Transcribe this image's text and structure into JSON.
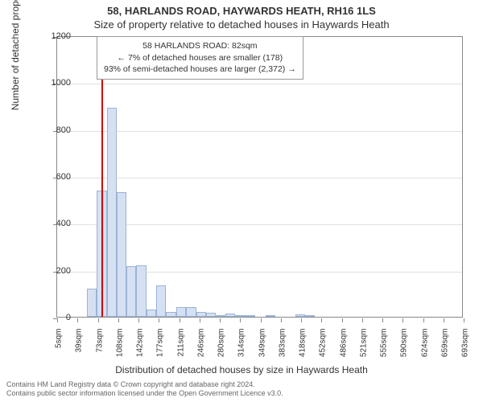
{
  "chart": {
    "type": "histogram",
    "title_main": "58, HARLANDS ROAD, HAYWARDS HEATH, RH16 1LS",
    "title_sub": "Size of property relative to detached houses in Haywards Heath",
    "ylabel": "Number of detached properties",
    "xlabel": "Distribution of detached houses by size in Haywards Heath",
    "title_fontsize": 13,
    "label_fontsize": 12,
    "tick_fontsize": 11,
    "annotation": {
      "line1": "58 HARLANDS ROAD: 82sqm",
      "line2": "← 7% of detached houses are smaller (178)",
      "line3": "93% of semi-detached houses are larger (2,372) →"
    },
    "ylim": [
      0,
      1200
    ],
    "ytick_step": 200,
    "yticks": [
      0,
      200,
      400,
      600,
      800,
      1000,
      1200
    ],
    "xticks": [
      "5sqm",
      "39sqm",
      "73sqm",
      "108sqm",
      "142sqm",
      "177sqm",
      "211sqm",
      "246sqm",
      "280sqm",
      "314sqm",
      "349sqm",
      "383sqm",
      "418sqm",
      "452sqm",
      "486sqm",
      "521sqm",
      "555sqm",
      "590sqm",
      "624sqm",
      "659sqm",
      "693sqm"
    ],
    "indicator_position_sqm": 82,
    "indicator_color": "#d40000",
    "bar_fill": "#d5e1f2",
    "bar_border": "#9bb3d6",
    "background_color": "#ffffff",
    "grid_color": "#e0e0e0",
    "axis_color": "#888888",
    "text_color": "#333333",
    "x_range_sqm": [
      5,
      710
    ],
    "bars": [
      {
        "start_sqm": 56,
        "end_sqm": 73,
        "value": 120
      },
      {
        "start_sqm": 73,
        "end_sqm": 91,
        "value": 540
      },
      {
        "start_sqm": 91,
        "end_sqm": 108,
        "value": 890
      },
      {
        "start_sqm": 108,
        "end_sqm": 125,
        "value": 530
      },
      {
        "start_sqm": 125,
        "end_sqm": 142,
        "value": 215
      },
      {
        "start_sqm": 142,
        "end_sqm": 160,
        "value": 220
      },
      {
        "start_sqm": 160,
        "end_sqm": 177,
        "value": 30
      },
      {
        "start_sqm": 177,
        "end_sqm": 194,
        "value": 135
      },
      {
        "start_sqm": 194,
        "end_sqm": 211,
        "value": 20
      },
      {
        "start_sqm": 211,
        "end_sqm": 228,
        "value": 40
      },
      {
        "start_sqm": 228,
        "end_sqm": 246,
        "value": 40
      },
      {
        "start_sqm": 246,
        "end_sqm": 263,
        "value": 20
      },
      {
        "start_sqm": 263,
        "end_sqm": 280,
        "value": 18
      },
      {
        "start_sqm": 280,
        "end_sqm": 297,
        "value": 8
      },
      {
        "start_sqm": 297,
        "end_sqm": 314,
        "value": 15
      },
      {
        "start_sqm": 314,
        "end_sqm": 332,
        "value": 5
      },
      {
        "start_sqm": 332,
        "end_sqm": 349,
        "value": 5
      },
      {
        "start_sqm": 366,
        "end_sqm": 383,
        "value": 5
      },
      {
        "start_sqm": 418,
        "end_sqm": 435,
        "value": 10
      },
      {
        "start_sqm": 435,
        "end_sqm": 452,
        "value": 5
      }
    ]
  },
  "footer": {
    "line1": "Contains HM Land Registry data © Crown copyright and database right 2024.",
    "line2": "Contains public sector information licensed under the Open Government Licence v3.0."
  }
}
